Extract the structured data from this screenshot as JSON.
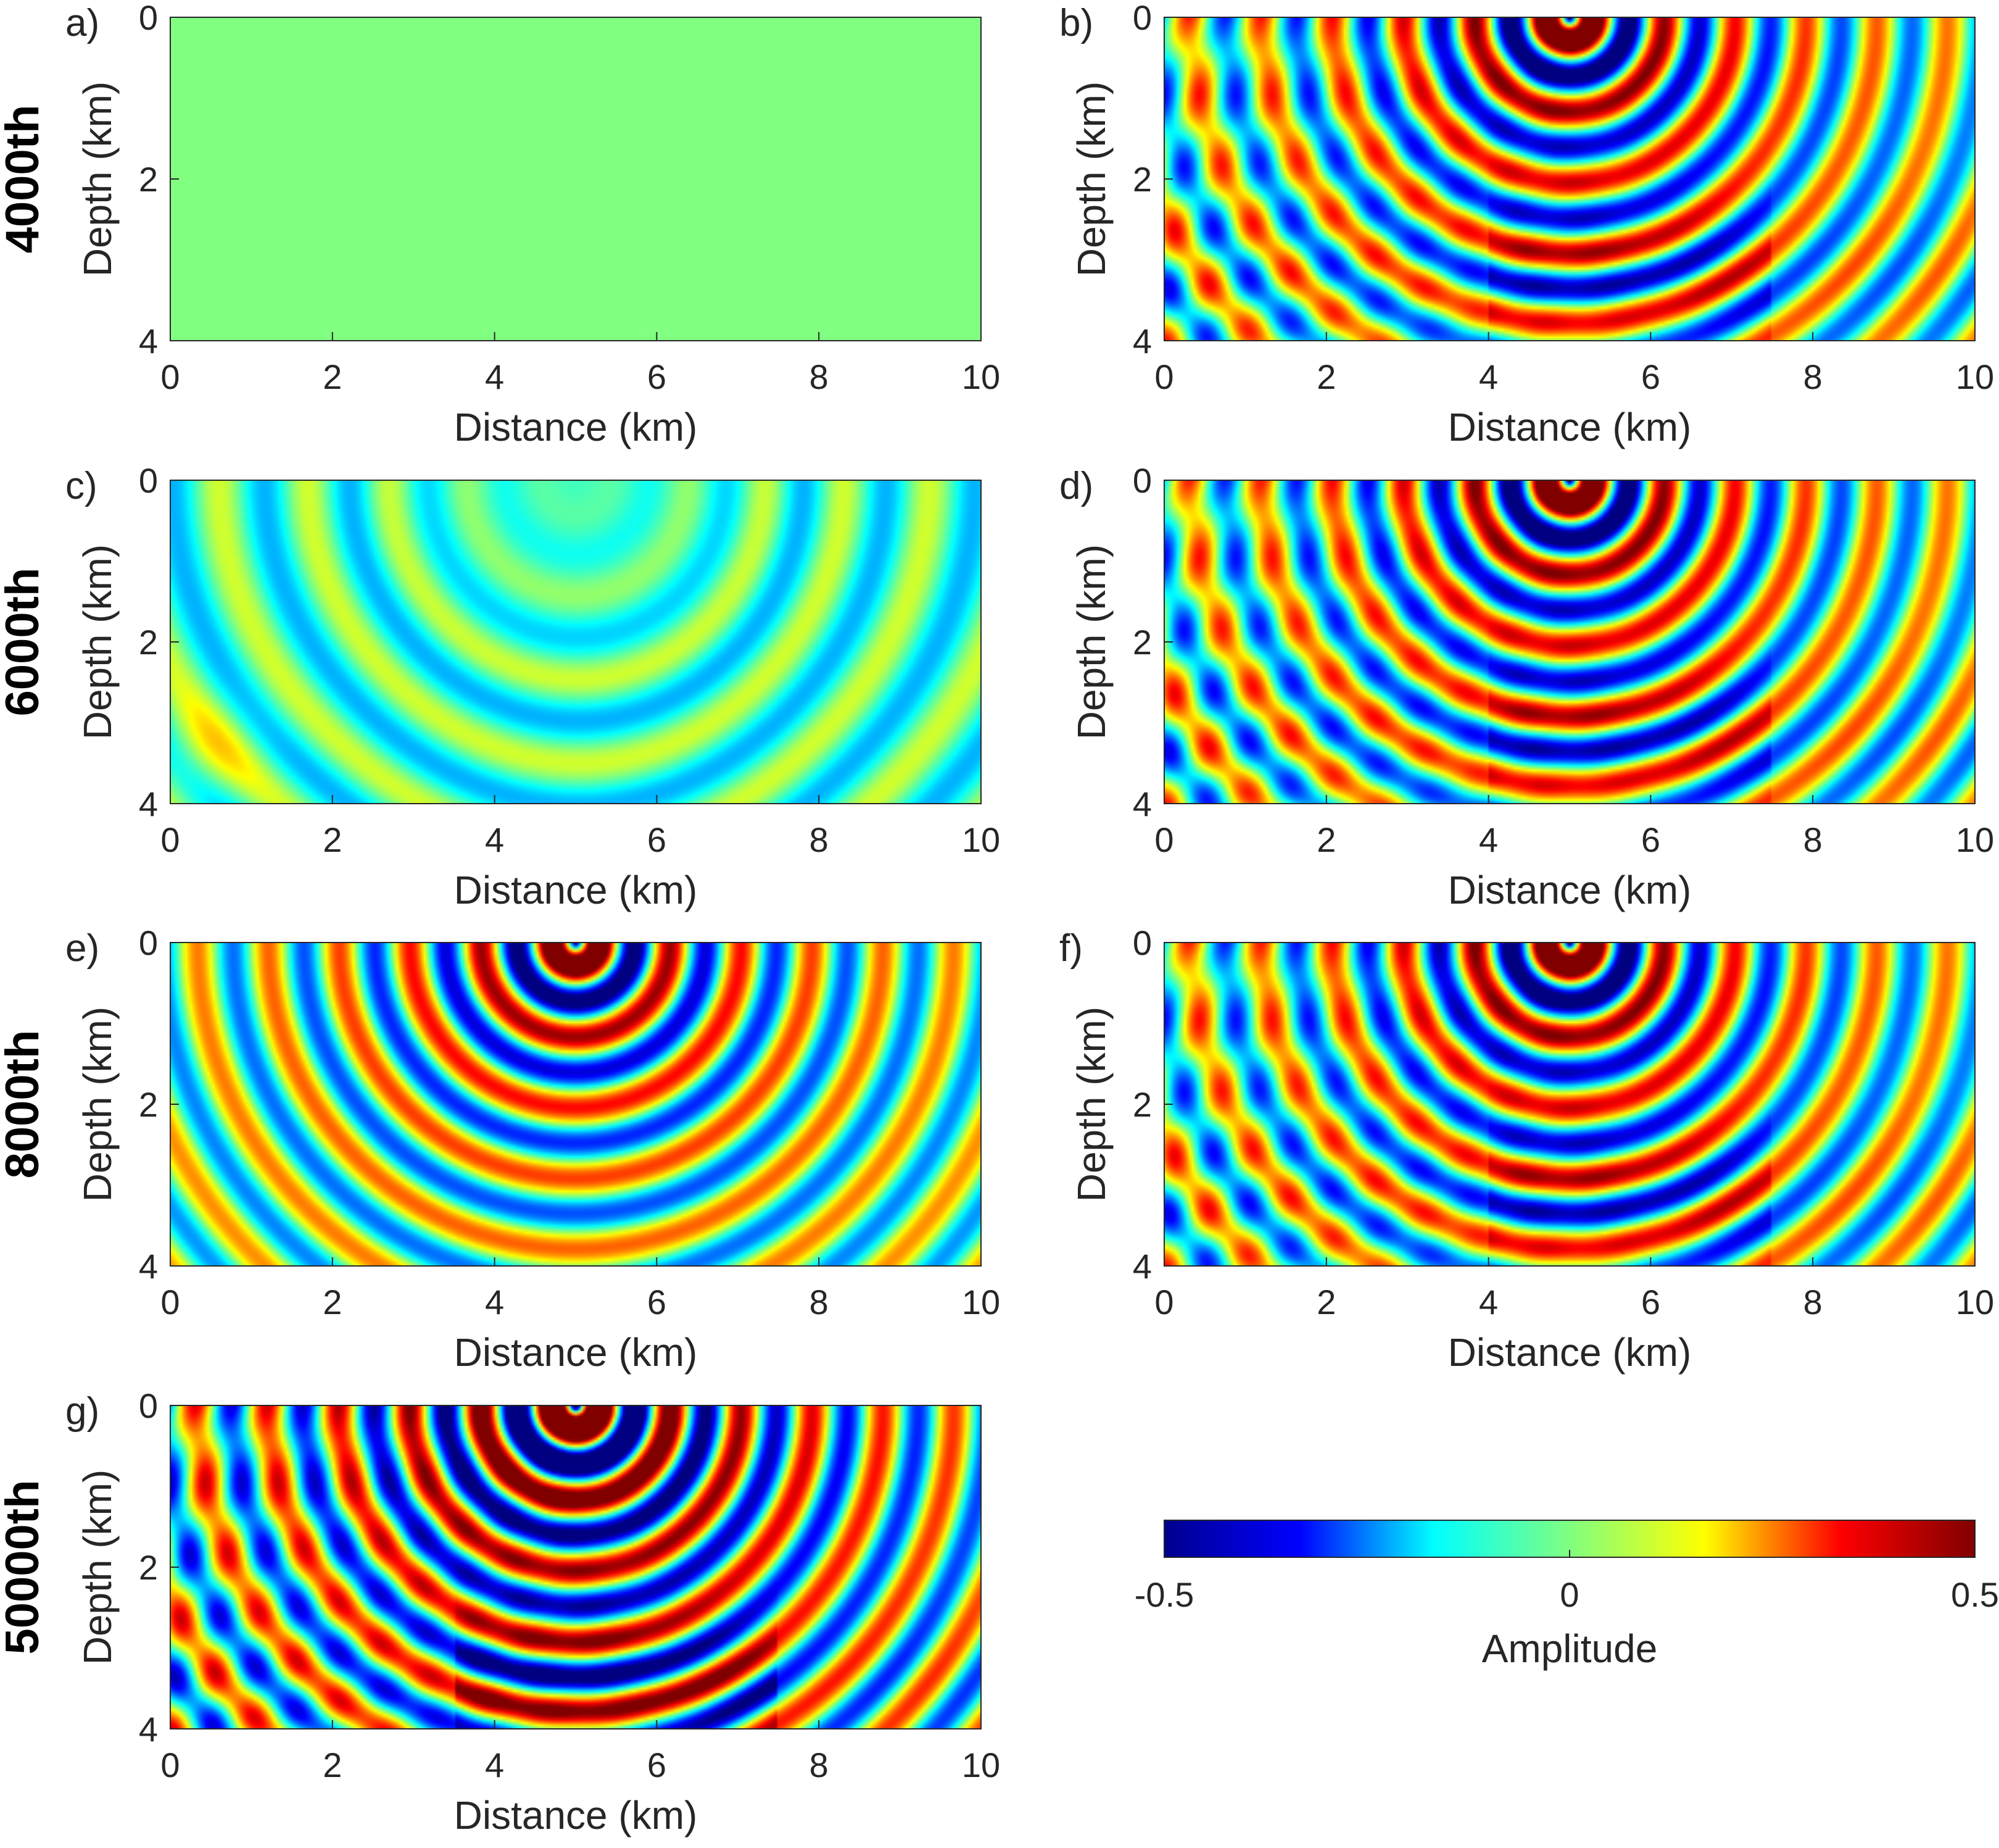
{
  "figure": {
    "row_labels": [
      "4000th",
      "6000th",
      "8000th",
      "50000th"
    ]
  },
  "chart_data": [
    {
      "panel": "a)",
      "type": "heatmap",
      "field": "empty",
      "xlabel": "Distance (km)",
      "ylabel": "Depth (km)",
      "xlim": [
        0,
        10
      ],
      "ylim": [
        0,
        4
      ],
      "xticks": [
        "0",
        "2",
        "4",
        "6",
        "8",
        "10"
      ],
      "yticks": [
        "0",
        "2",
        "4"
      ]
    },
    {
      "panel": "b)",
      "type": "heatmap",
      "field": "true",
      "xlabel": "Distance (km)",
      "ylabel": "Depth (km)",
      "xlim": [
        0,
        10
      ],
      "ylim": [
        0,
        4
      ],
      "xticks": [
        "0",
        "2",
        "4",
        "6",
        "8",
        "10"
      ],
      "yticks": [
        "0",
        "2",
        "4"
      ]
    },
    {
      "panel": "c)",
      "type": "heatmap",
      "field": "faint",
      "xlabel": "Distance (km)",
      "ylabel": "Depth (km)",
      "xlim": [
        0,
        10
      ],
      "ylim": [
        0,
        4
      ],
      "xticks": [
        "0",
        "2",
        "4",
        "6",
        "8",
        "10"
      ],
      "yticks": [
        "0",
        "2",
        "4"
      ]
    },
    {
      "panel": "d)",
      "type": "heatmap",
      "field": "true",
      "xlabel": "Distance (km)",
      "ylabel": "Depth (km)",
      "xlim": [
        0,
        10
      ],
      "ylim": [
        0,
        4
      ],
      "xticks": [
        "0",
        "2",
        "4",
        "6",
        "8",
        "10"
      ],
      "yticks": [
        "0",
        "2",
        "4"
      ]
    },
    {
      "panel": "e)",
      "type": "heatmap",
      "field": "predicted",
      "xlabel": "Distance (km)",
      "ylabel": "Depth (km)",
      "xlim": [
        0,
        10
      ],
      "ylim": [
        0,
        4
      ],
      "xticks": [
        "0",
        "2",
        "4",
        "6",
        "8",
        "10"
      ],
      "yticks": [
        "0",
        "2",
        "4"
      ]
    },
    {
      "panel": "f)",
      "type": "heatmap",
      "field": "true",
      "xlabel": "Distance (km)",
      "ylabel": "Depth (km)",
      "xlim": [
        0,
        10
      ],
      "ylim": [
        0,
        4
      ],
      "xticks": [
        "0",
        "2",
        "4",
        "6",
        "8",
        "10"
      ],
      "yticks": [
        "0",
        "2",
        "4"
      ]
    },
    {
      "panel": "g)",
      "type": "heatmap",
      "field": "predicted-strong",
      "xlabel": "Distance (km)",
      "ylabel": "Depth (km)",
      "xlim": [
        0,
        10
      ],
      "ylim": [
        0,
        4
      ],
      "xticks": [
        "0",
        "2",
        "4",
        "6",
        "8",
        "10"
      ],
      "yticks": [
        "0",
        "2",
        "4"
      ]
    }
  ],
  "colorbar": {
    "label": "Amplitude",
    "range": [
      -0.5,
      0.5
    ],
    "ticks": [
      "-0.5",
      "0",
      "0.5"
    ],
    "colormap": "jet",
    "colors": [
      "#00008f",
      "#0000ff",
      "#00ffff",
      "#80ff80",
      "#ffff00",
      "#ff0000",
      "#800000"
    ]
  }
}
